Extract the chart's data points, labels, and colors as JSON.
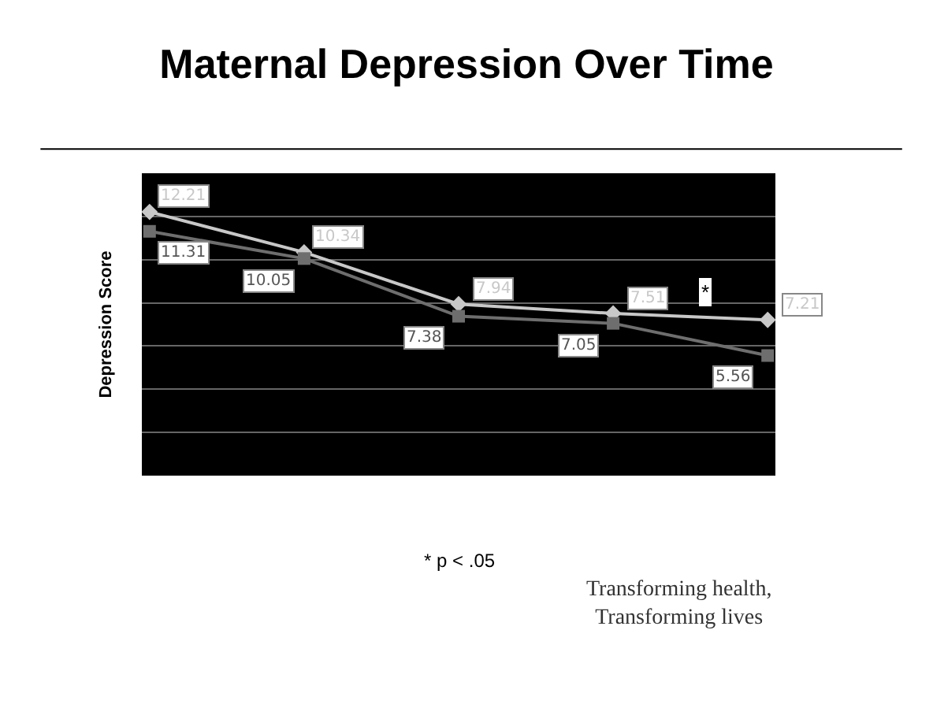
{
  "chart_data": {
    "type": "line",
    "title": "Maternal Depression Over Time",
    "ylabel": "Depression Score",
    "categories": [
      null,
      null,
      null,
      null,
      null
    ],
    "series": [
      {
        "color": "#c8c8c8",
        "marker": "diamond",
        "values": [
          12.21,
          10.34,
          7.94,
          7.51,
          7.21
        ]
      },
      {
        "color": "#6e6e6e",
        "marker": "square",
        "values": [
          11.31,
          10.05,
          7.38,
          7.05,
          5.56
        ]
      }
    ],
    "ylim": [
      0,
      14
    ],
    "yticks": [
      {
        "value": 0,
        "label": null
      },
      {
        "value": 2,
        "label": null
      },
      {
        "value": 4,
        "label": null
      },
      {
        "value": 6,
        "label": null
      },
      {
        "value": 8,
        "label": null
      },
      {
        "value": 10,
        "label": null
      },
      {
        "value": 12,
        "label": null
      },
      {
        "value": 14,
        "label": null
      }
    ],
    "grid": "y",
    "data_labels": true,
    "annotations": [
      "*",
      "* p < .05",
      "Transforming health,\nTransforming lives"
    ]
  }
}
